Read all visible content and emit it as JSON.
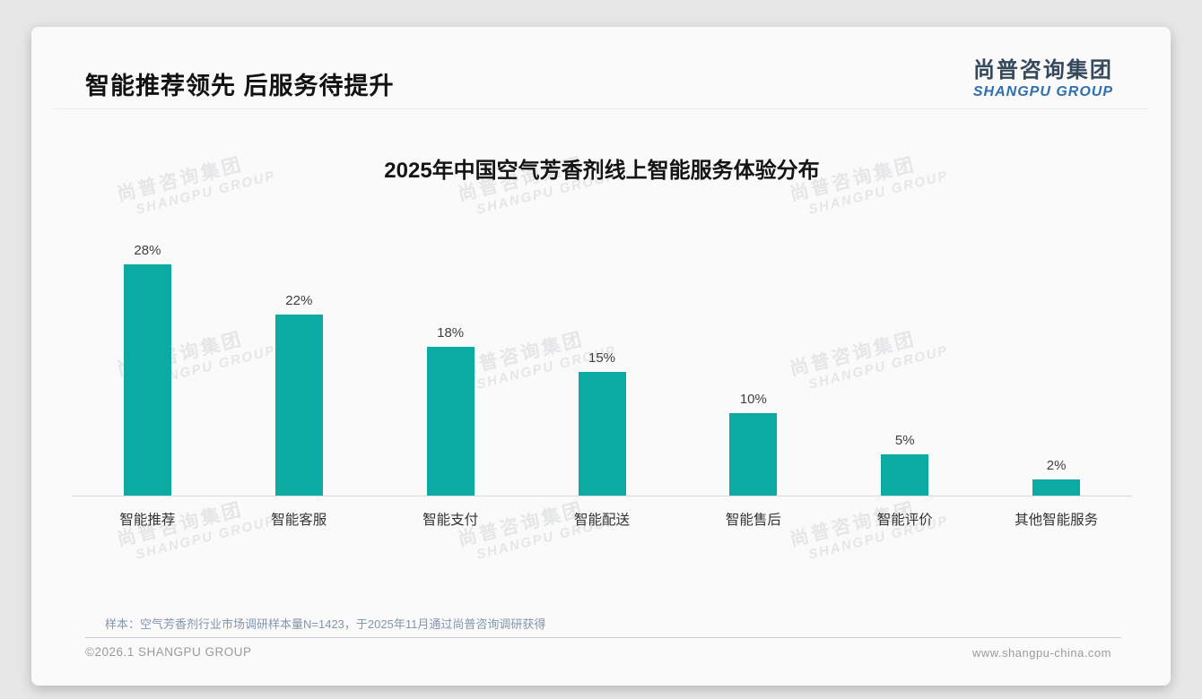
{
  "slide": {
    "title": "智能推荐领先 后服务待提升",
    "logo": {
      "name_cn": "尚普咨询集团",
      "name_en": "SHANGPU GROUP"
    },
    "watermark": {
      "line1": "尚普咨询集团",
      "line2": "SHANGPU GROUP"
    },
    "note": "样本：空气芳香剂行业市场调研样本量N=1423，于2025年11月通过尚普咨询调研获得",
    "footer": {
      "copyright": "©2026.1 SHANGPU GROUP",
      "website": "www.shangpu-china.com"
    }
  },
  "chart_data": {
    "type": "bar",
    "title": "2025年中国空气芳香剂线上智能服务体验分布",
    "categories": [
      "智能推荐",
      "智能客服",
      "智能支付",
      "智能配送",
      "智能售后",
      "智能评价",
      "其他智能服务"
    ],
    "values": [
      28,
      22,
      18,
      15,
      10,
      5,
      2
    ],
    "value_labels": [
      "28%",
      "22%",
      "18%",
      "15%",
      "10%",
      "5%",
      "2%"
    ],
    "unit": "%",
    "xlabel": "",
    "ylabel": "",
    "ylim": [
      0,
      30
    ],
    "grid": false,
    "legend": false,
    "bar_color": "#0BABA3",
    "colors": {
      "value_label": "#3f3f3f",
      "category_label": "#333333",
      "axis_line": "#d9d9d9",
      "note_text": "#8296ac",
      "logo_cn": "#36495c",
      "logo_en": "#2f6fad"
    }
  }
}
